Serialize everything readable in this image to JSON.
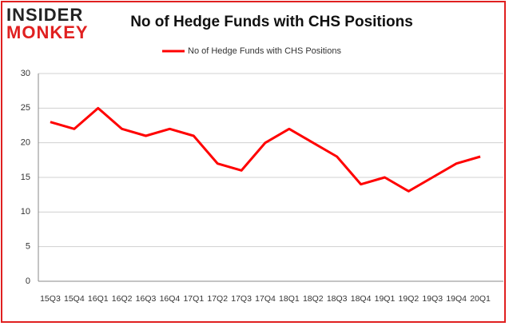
{
  "logo": {
    "line1": "INSIDER",
    "line2": "MONKEY"
  },
  "chart_data": {
    "type": "line",
    "title": "No of Hedge Funds with CHS Positions",
    "categories": [
      "15Q3",
      "15Q4",
      "16Q1",
      "16Q2",
      "16Q3",
      "16Q4",
      "17Q1",
      "17Q2",
      "17Q3",
      "17Q4",
      "18Q1",
      "18Q2",
      "18Q3",
      "18Q4",
      "19Q1",
      "19Q2",
      "19Q3",
      "19Q4",
      "20Q1"
    ],
    "series": [
      {
        "name": "No of Hedge Funds with CHS Positions",
        "color": "#ff0000",
        "values": [
          23,
          22,
          25,
          22,
          21,
          22,
          21,
          17,
          16,
          20,
          22,
          20,
          18,
          14,
          15,
          13,
          15,
          17,
          18
        ]
      }
    ],
    "ylim": [
      0,
      30
    ],
    "yticks": [
      0,
      5,
      10,
      15,
      20,
      25,
      30
    ],
    "grid": true,
    "legend": "top"
  }
}
